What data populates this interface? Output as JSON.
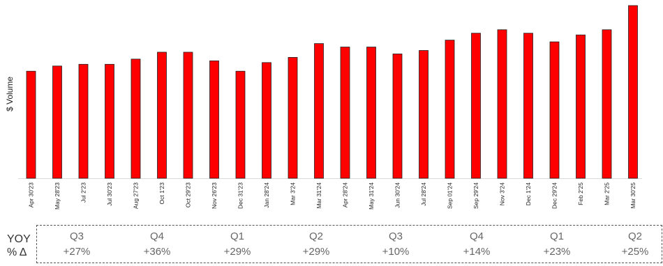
{
  "chart_data": {
    "type": "bar",
    "ylabel": "$ Volume",
    "xlabel": "",
    "title": "",
    "bar_color": "#ff0000",
    "categories": [
      "Apr 30'23",
      "May 28'23",
      "Jul 2'23",
      "Jul 30'23",
      "Aug 27'23",
      "Oct 1'23",
      "Oct 29'23",
      "Nov 26'23",
      "Dec 31'23",
      "Jan 28'24",
      "Mar 3'24",
      "Mar 31'24",
      "Apr 28'24",
      "May 31'24",
      "Jun 30'24",
      "Jul 28'24",
      "Sep 01'24",
      "Sep 29'24",
      "Nov 3'24",
      "Dec 1'24",
      "Dec 29'24",
      "Feb 2'25",
      "Mar 2'25",
      "Mar 30'25"
    ],
    "values": [
      62,
      65,
      66,
      66,
      69,
      73,
      73,
      68,
      62,
      67,
      70,
      78,
      76,
      76,
      72,
      74,
      80,
      84,
      86,
      84,
      79,
      83,
      86,
      100
    ],
    "ylim": [
      0,
      100
    ],
    "grid": false,
    "legend": "none"
  },
  "yoy": {
    "label_line1": "YOY",
    "label_line2": "% Δ",
    "quarters": [
      {
        "q": "Q3",
        "pct": "+27%"
      },
      {
        "q": "Q4",
        "pct": "+36%"
      },
      {
        "q": "Q1",
        "pct": "+29%"
      },
      {
        "q": "Q2",
        "pct": "+29%"
      },
      {
        "q": "Q3",
        "pct": "+10%"
      },
      {
        "q": "Q4",
        "pct": "+14%"
      },
      {
        "q": "Q1",
        "pct": "+23%"
      },
      {
        "q": "Q2",
        "pct": "+25%"
      }
    ]
  }
}
